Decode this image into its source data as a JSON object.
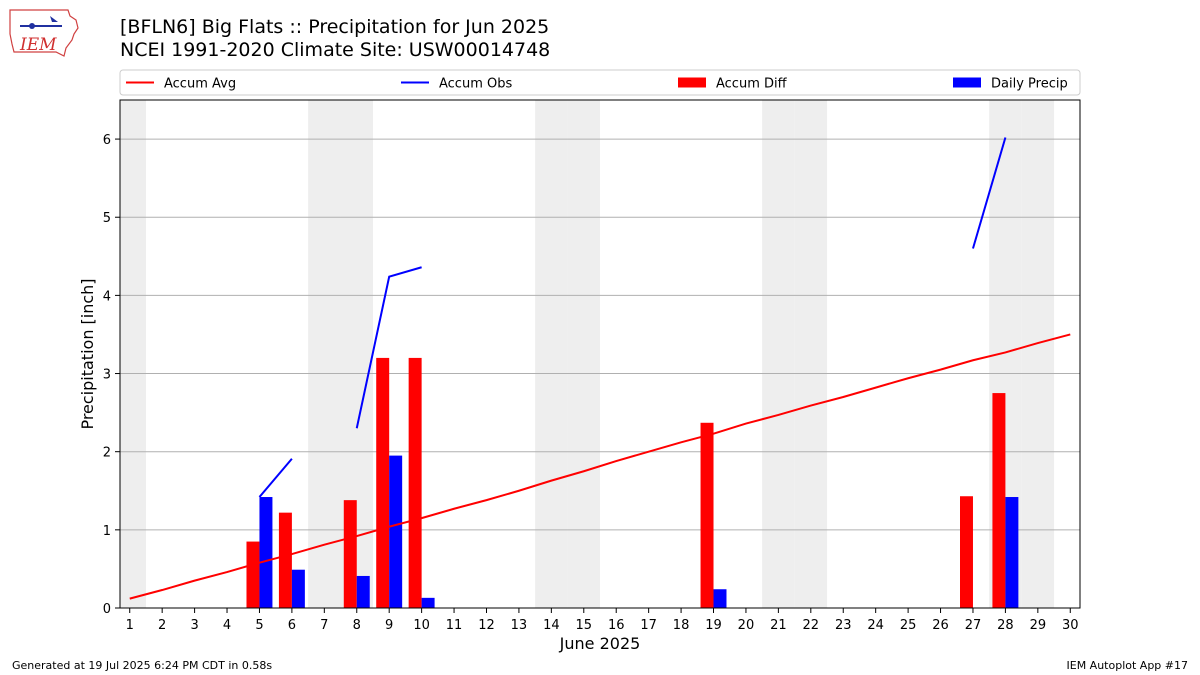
{
  "header": {
    "logo_text": "IEM",
    "title_line1": "[BFLN6] Big Flats :: Precipitation for Jun 2025",
    "title_line2": "NCEI 1991-2020 Climate Site: USW00014748"
  },
  "footer": {
    "generated": "Generated at 19 Jul 2025 6:24 PM CDT in 0.58s",
    "app": "IEM Autoplot App #17"
  },
  "colors": {
    "avg": "#ff0000",
    "obs": "#0000ff",
    "diff": "#ff0000",
    "daily": "#0000ff",
    "weekend_shade": "#eeeeee",
    "grid": "#b0b0b0"
  },
  "chart_data": {
    "type": "bar",
    "xlabel": "June 2025",
    "ylabel": "Precipitation [inch]",
    "xlim": [
      0.7,
      30.3
    ],
    "ylim": [
      0,
      6.5
    ],
    "yticks": [
      0,
      1,
      2,
      3,
      4,
      5,
      6
    ],
    "ytick_labels": [
      "0",
      "1",
      "2",
      "3",
      "4",
      "5",
      "6"
    ],
    "days": [
      1,
      2,
      3,
      4,
      5,
      6,
      7,
      8,
      9,
      10,
      11,
      12,
      13,
      14,
      15,
      16,
      17,
      18,
      19,
      20,
      21,
      22,
      23,
      24,
      25,
      26,
      27,
      28,
      29,
      30
    ],
    "xtick_labels": [
      "1",
      "2",
      "3",
      "4",
      "5",
      "6",
      "7",
      "8",
      "9",
      "10",
      "11",
      "12",
      "13",
      "14",
      "15",
      "16",
      "17",
      "18",
      "19",
      "20",
      "21",
      "22",
      "23",
      "24",
      "25",
      "26",
      "27",
      "28",
      "29",
      "30"
    ],
    "weekend_days": [
      1,
      7,
      8,
      14,
      15,
      21,
      22,
      28,
      29
    ],
    "grid": true,
    "legend_position": "top",
    "series": [
      {
        "name": "Accum Avg",
        "kind": "line",
        "values": [
          0.12,
          0.23,
          0.35,
          0.46,
          0.58,
          0.69,
          0.81,
          0.92,
          1.04,
          1.15,
          1.27,
          1.38,
          1.5,
          1.63,
          1.75,
          1.88,
          2.0,
          2.12,
          2.23,
          2.36,
          2.47,
          2.59,
          2.7,
          2.82,
          2.94,
          3.05,
          3.17,
          3.27,
          3.39,
          3.5
        ]
      },
      {
        "name": "Accum Obs",
        "kind": "line",
        "segments": [
          {
            "x": [
              5,
              6
            ],
            "y": [
              1.42,
              1.91
            ]
          },
          {
            "x": [
              8,
              9,
              10
            ],
            "y": [
              2.3,
              4.24,
              4.36
            ]
          },
          {
            "x": [
              27,
              28
            ],
            "y": [
              4.6,
              6.02
            ]
          }
        ]
      },
      {
        "name": "Accum Diff",
        "kind": "bar",
        "points": [
          [
            5,
            0.85
          ],
          [
            6,
            1.22
          ],
          [
            8,
            1.38
          ],
          [
            9,
            3.2
          ],
          [
            10,
            3.2
          ],
          [
            19,
            2.37
          ],
          [
            27,
            1.43
          ],
          [
            28,
            2.75
          ]
        ]
      },
      {
        "name": "Daily Precip",
        "kind": "bar",
        "points": [
          [
            5,
            1.42
          ],
          [
            6,
            0.49
          ],
          [
            8,
            0.41
          ],
          [
            9,
            1.95
          ],
          [
            10,
            0.13
          ],
          [
            19,
            0.24
          ],
          [
            28,
            1.42
          ]
        ]
      }
    ]
  }
}
